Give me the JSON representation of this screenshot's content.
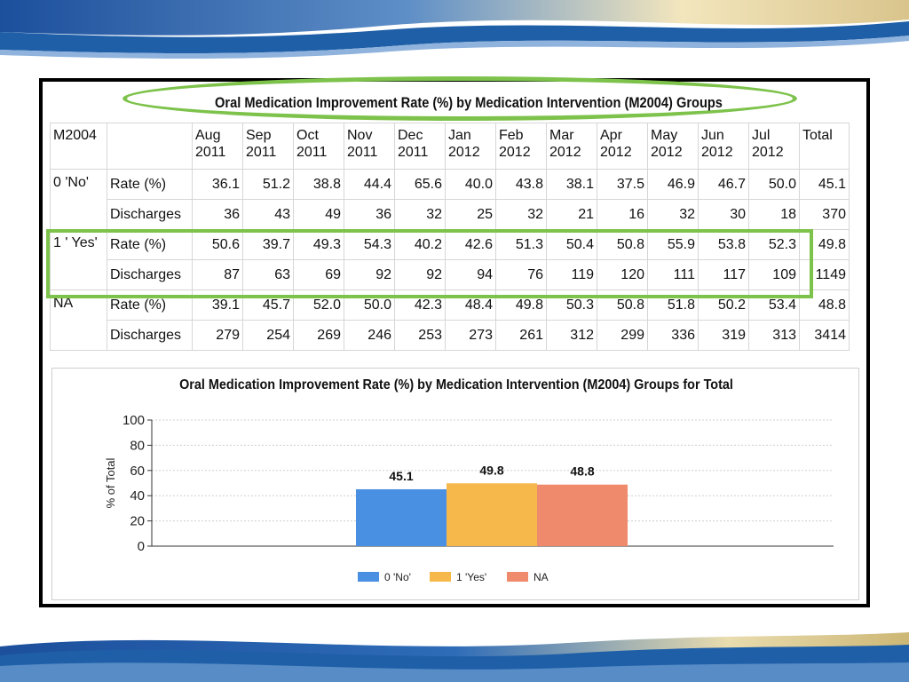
{
  "table": {
    "title": "Oral Medication Improvement Rate (%) by Medication Intervention (M2004) Groups",
    "corner_label": "M2004",
    "month_headers": [
      {
        "month": "Aug",
        "year": "2011"
      },
      {
        "month": "Sep",
        "year": "2011"
      },
      {
        "month": "Oct",
        "year": "2011"
      },
      {
        "month": "Nov",
        "year": "2011"
      },
      {
        "month": "Dec",
        "year": "2011"
      },
      {
        "month": "Jan",
        "year": "2012"
      },
      {
        "month": "Feb",
        "year": "2012"
      },
      {
        "month": "Mar",
        "year": "2012"
      },
      {
        "month": "Apr",
        "year": "2012"
      },
      {
        "month": "May",
        "year": "2012"
      },
      {
        "month": "Jun",
        "year": "2012"
      },
      {
        "month": "Jul",
        "year": "2012"
      }
    ],
    "total_header": "Total",
    "groups": [
      {
        "label": "0 'No'",
        "rows": [
          {
            "metric": "Rate (%)",
            "values": [
              "36.1",
              "51.2",
              "38.8",
              "44.4",
              "65.6",
              "40.0",
              "43.8",
              "38.1",
              "37.5",
              "46.9",
              "46.7",
              "50.0"
            ],
            "total": "45.1"
          },
          {
            "metric": "Discharges",
            "values": [
              "36",
              "43",
              "49",
              "36",
              "32",
              "25",
              "32",
              "21",
              "16",
              "32",
              "30",
              "18"
            ],
            "total": "370"
          }
        ]
      },
      {
        "label": "1 ' Yes'",
        "rows": [
          {
            "metric": "Rate (%)",
            "values": [
              "50.6",
              "39.7",
              "49.3",
              "54.3",
              "40.2",
              "42.6",
              "51.3",
              "50.4",
              "50.8",
              "55.9",
              "53.8",
              "52.3"
            ],
            "total": "49.8"
          },
          {
            "metric": "Discharges",
            "values": [
              "87",
              "63",
              "69",
              "92",
              "92",
              "94",
              "76",
              "119",
              "120",
              "111",
              "117",
              "109"
            ],
            "total": "1149"
          }
        ]
      },
      {
        "label": "NA",
        "rows": [
          {
            "metric": "Rate (%)",
            "values": [
              "39.1",
              "45.7",
              "52.0",
              "50.0",
              "42.3",
              "48.4",
              "49.8",
              "50.3",
              "50.8",
              "51.8",
              "50.2",
              "53.4"
            ],
            "total": "48.8"
          },
          {
            "metric": "Discharges",
            "values": [
              "279",
              "254",
              "269",
              "246",
              "253",
              "273",
              "261",
              "312",
              "299",
              "336",
              "319",
              "313"
            ],
            "total": "3414"
          }
        ]
      }
    ]
  },
  "chart_data": {
    "type": "bar",
    "title": "Oral Medication Improvement Rate (%) by Medication Intervention (M2004) Groups for Total",
    "xlabel": "",
    "ylabel": "% of Total",
    "ylim": [
      0,
      100
    ],
    "yticks": [
      0,
      20,
      40,
      60,
      80,
      100
    ],
    "grid": true,
    "legend_position": "bottom",
    "series": [
      {
        "name": "0 'No'",
        "value": 45.1,
        "label": "45.1",
        "color": "#4a90e2"
      },
      {
        "name": "1 'Yes'",
        "value": 49.8,
        "label": "49.8",
        "color": "#f7b84b"
      },
      {
        "name": "NA",
        "value": 48.8,
        "label": "48.8",
        "color": "#f08a6c"
      }
    ]
  },
  "colors": {
    "highlight": "#7dc24b",
    "banner_blue": "#1f5fa8",
    "banner_gold": "#e9d6a0"
  }
}
